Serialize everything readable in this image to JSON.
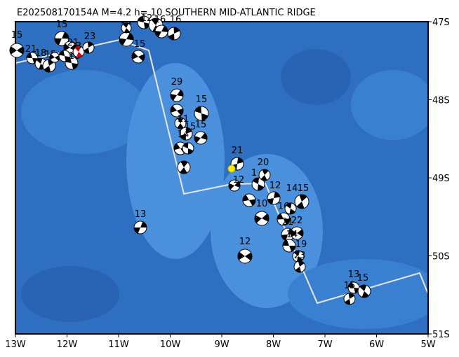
{
  "header": {
    "title": "E202508170154A  M=4.2 h= 10 SOUTHERN MID-ATLANTIC RIDGE"
  },
  "x_axis": {
    "labels": [
      "13W",
      "12W",
      "11W",
      "10W",
      "9W",
      "8W",
      "7W",
      "6W",
      "5W"
    ]
  },
  "y_axis": {
    "labels": [
      "47S",
      "48S",
      "49S",
      "50S",
      "51S"
    ]
  },
  "events": [
    {
      "label": "15"
    },
    {
      "label": "21"
    },
    {
      "label": "18"
    },
    {
      "label": "15"
    },
    {
      "label": "15"
    },
    {
      "label": "21"
    },
    {
      "label": "16"
    },
    {
      "label": "23"
    },
    {
      "label": "23"
    },
    {
      "label": "14"
    },
    {
      "label": "15"
    },
    {
      "label": "12"
    },
    {
      "label": "16"
    },
    {
      "label": "16"
    },
    {
      "label": "29"
    },
    {
      "label": "15"
    },
    {
      "label": "11"
    },
    {
      "label": "15"
    },
    {
      "label": "15"
    },
    {
      "label": "14"
    },
    {
      "label": "21"
    },
    {
      "label": "12"
    },
    {
      "label": "1"
    },
    {
      "label": "20"
    },
    {
      "label": "12"
    },
    {
      "label": "10"
    },
    {
      "label": "16"
    },
    {
      "label": "14"
    },
    {
      "label": "15"
    },
    {
      "label": "21"
    },
    {
      "label": "22"
    },
    {
      "label": "14"
    },
    {
      "label": "19"
    },
    {
      "label": "23"
    },
    {
      "label": "13"
    },
    {
      "label": "12"
    },
    {
      "label": "13"
    },
    {
      "label": "15"
    },
    {
      "label": "15"
    }
  ]
}
